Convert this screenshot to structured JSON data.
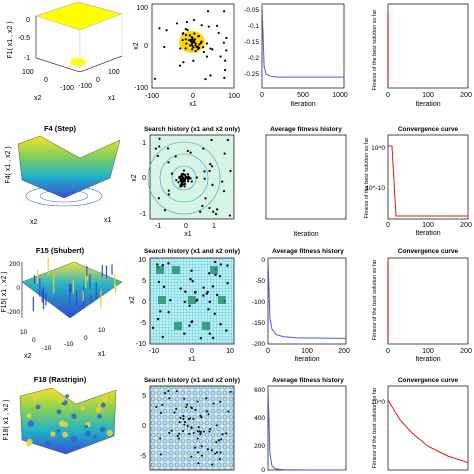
{
  "rows": [
    {
      "surface": {
        "title": "",
        "zlabel": "F1( x1 , x2 )",
        "xlabel": "x1",
        "ylabel": "x2",
        "zticks": [
          "0",
          "-0.5",
          "-1"
        ],
        "xticks": [
          "-100",
          "0",
          "100"
        ],
        "yticks": [
          "100",
          "0",
          "-100"
        ]
      },
      "history": {
        "title": "",
        "xlabel": "x1",
        "ylabel": "x2",
        "xticks": [
          "-100",
          "0",
          "100"
        ],
        "yticks": [
          "100",
          "0",
          "-100"
        ]
      },
      "avg": {
        "title": "",
        "xlabel": "Iteration",
        "xticks": [
          "0",
          "500",
          "1000"
        ],
        "yticks": [
          "-0.05",
          "-0.1",
          "-0.15",
          "-0.2",
          "-0.25"
        ]
      },
      "conv": {
        "title": "",
        "xlabel": "Iteration",
        "ylabel": "Fitness of the best solution so far",
        "xticks": [
          "0",
          "100",
          "200"
        ],
        "yticks": []
      }
    },
    {
      "surface": {
        "title": "F4 (Step)",
        "zlabel": "F4( x1 , x2 )",
        "xlabel": "x1",
        "ylabel": "x2",
        "zticks": [],
        "xticks": [],
        "yticks": []
      },
      "history": {
        "title": "Search history (x1 and x2 only)",
        "xlabel": "x1",
        "ylabel": "x2",
        "xticks": [
          "-1",
          "0",
          "1"
        ],
        "yticks": [
          "1",
          "0",
          "-1"
        ]
      },
      "avg": {
        "title": "Average fitness history",
        "xlabel": "Iteration",
        "xticks": [],
        "yticks": []
      },
      "conv": {
        "title": "Convergence curve",
        "xlabel": "Iteration",
        "ylabel": "Fitness of the best solution so far",
        "xticks": [
          "0",
          "100",
          "200"
        ],
        "yticks": [
          "10^0",
          "10^-10"
        ]
      }
    },
    {
      "surface": {
        "title": "F15 (Shubert)",
        "zlabel": "F15( x1 , x2 )",
        "xlabel": "x1",
        "ylabel": "x2",
        "zticks": [
          "200",
          "0",
          "-200"
        ],
        "xticks": [
          "-10",
          "0",
          "10"
        ],
        "yticks": [
          "10",
          "0",
          "-10"
        ]
      },
      "history": {
        "title": "Search history (x1 and x2 only)",
        "xlabel": "x1",
        "ylabel": "x2",
        "xticks": [
          "-10",
          "0",
          "10"
        ],
        "yticks": [
          "10",
          "5",
          "0",
          "-5",
          "-10"
        ]
      },
      "avg": {
        "title": "Average fitness history",
        "xlabel": "Iteration",
        "xticks": [
          "0",
          "100",
          "200"
        ],
        "yticks": [
          "0",
          "-50",
          "-100",
          "-150",
          "-200"
        ]
      },
      "conv": {
        "title": "Convergence curve",
        "xlabel": "Iteration",
        "ylabel": "Fitness of the best solution so far",
        "xticks": [
          "0",
          "100",
          "200"
        ],
        "yticks": []
      }
    },
    {
      "surface": {
        "title": "F18 (Rastrigin)",
        "zlabel": "F18( x1 , x2 )",
        "xlabel": "",
        "ylabel": "",
        "zticks": [],
        "xticks": [],
        "yticks": []
      },
      "history": {
        "title": "Search history (x1 and x2 only)",
        "xlabel": "",
        "ylabel": "",
        "xticks": [],
        "yticks": [
          "5",
          "0",
          "-5"
        ]
      },
      "avg": {
        "title": "Average fitness history",
        "xlabel": "",
        "xticks": [],
        "yticks": [
          "600",
          "400",
          "200",
          "0"
        ]
      },
      "conv": {
        "title": "Convergence curve",
        "xlabel": "",
        "ylabel": "Fitness of the best solution so far",
        "xticks": [],
        "yticks": [
          "10^0"
        ]
      }
    }
  ],
  "chart_data": [
    {
      "type": "line",
      "x": [
        0,
        25,
        50,
        100,
        200,
        500,
        1000
      ],
      "y": [
        0,
        -0.2,
        -0.225,
        -0.232,
        -0.235,
        -0.235,
        -0.235
      ],
      "xlim": [
        0,
        1000
      ],
      "ylim": [
        -0.27,
        0
      ],
      "grid": false
    },
    {
      "type": "line",
      "x": [
        0,
        10,
        20,
        200
      ],
      "y": [
        1,
        1,
        0.1,
        0.1
      ],
      "xlim": [
        0,
        200
      ],
      "grid": false
    },
    {
      "type": "line",
      "x": [
        0,
        5,
        10,
        20,
        40,
        80,
        120,
        200
      ],
      "y": [
        0,
        -140,
        -165,
        -178,
        -183,
        -186,
        -186,
        -187
      ],
      "xlim": [
        0,
        200
      ],
      "ylim": [
        -200,
        0
      ],
      "grid": false
    },
    {
      "type": "line",
      "x": [
        0,
        5,
        10,
        20,
        40,
        80,
        120,
        200
      ],
      "y": [
        600,
        120,
        30,
        8,
        2,
        0.5,
        0.2,
        0.1
      ],
      "xlim": [
        0,
        200
      ],
      "ylim": [
        0,
        600
      ],
      "grid": false
    }
  ],
  "colors": {
    "surface_yellow": "#ffff00",
    "line_blue": "#4b5cd6",
    "line_red": "#d7191c",
    "history_cyan": "#00bcd4"
  }
}
